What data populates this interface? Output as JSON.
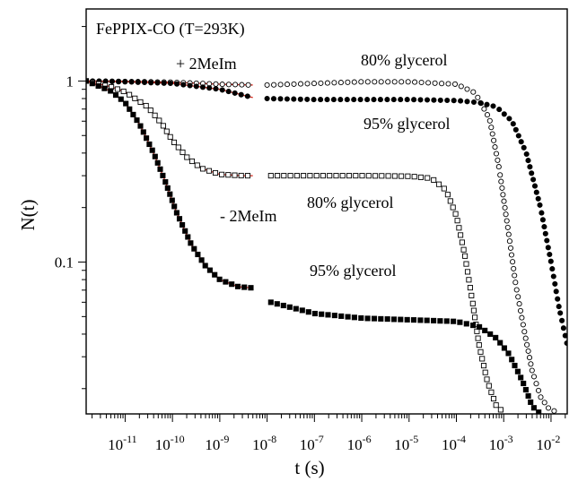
{
  "chart_data": {
    "type": "scatter",
    "title": "FePPIX-CO (T=293K)",
    "xlabel": "t (s)",
    "ylabel": "N(t)",
    "x_scale": "log",
    "y_scale": "log",
    "xlim": [
      1.5e-12,
      0.022
    ],
    "ylim": [
      0.0145,
      2.5
    ],
    "x_ticks": [
      {
        "value": 1e-11,
        "label": "10",
        "exp": "-11"
      },
      {
        "value": 1e-10,
        "label": "10",
        "exp": "-10"
      },
      {
        "value": 1e-09,
        "label": "10",
        "exp": "-9"
      },
      {
        "value": 1e-08,
        "label": "10",
        "exp": "-8"
      },
      {
        "value": 1e-07,
        "label": "10",
        "exp": "-7"
      },
      {
        "value": 1e-06,
        "label": "10",
        "exp": "-6"
      },
      {
        "value": 1e-05,
        "label": "10",
        "exp": "-5"
      },
      {
        "value": 0.0001,
        "label": "10",
        "exp": "-4"
      },
      {
        "value": 0.001,
        "label": "10",
        "exp": "-3"
      },
      {
        "value": 0.01,
        "label": "10",
        "exp": "-2"
      }
    ],
    "y_ticks": [
      {
        "value": 1,
        "label": "1"
      },
      {
        "value": 0.1,
        "label": "0.1"
      }
    ],
    "annotations": {
      "plus_2meim": "+ 2MeIm",
      "minus_2meim": "- 2MeIm",
      "top_80": "80% glycerol",
      "top_95": "95% glycerol",
      "mid_80": "80% glycerol",
      "bottom_95": "95% glycerol"
    },
    "series": [
      {
        "marker": "open-circle",
        "color": "#000000",
        "segments": [
          {
            "x_range": [
              1.5e-12,
              5e-09
            ],
            "points": [
              [
                1.5e-12,
                1.0
              ],
              [
                1e-11,
                0.995
              ],
              [
                1e-10,
                0.985
              ],
              [
                1e-09,
                0.96
              ],
              [
                5e-09,
                0.95
              ]
            ]
          },
          {
            "x_range": [
              1e-08,
              0.012
            ],
            "points": [
              [
                1e-08,
                0.95
              ],
              [
                1e-07,
                0.97
              ],
              [
                1e-06,
                0.99
              ],
              [
                1e-05,
                0.99
              ],
              [
                0.0001,
                0.96
              ],
              [
                0.00025,
                0.86
              ],
              [
                0.0005,
                0.62
              ],
              [
                0.0008,
                0.33
              ],
              [
                0.0012,
                0.16
              ],
              [
                0.0018,
                0.075
              ],
              [
                0.0028,
                0.04
              ],
              [
                0.004,
                0.025
              ],
              [
                0.006,
                0.018
              ],
              [
                0.009,
                0.0155
              ],
              [
                0.012,
                0.015
              ]
            ]
          }
        ]
      },
      {
        "marker": "filled-circle",
        "color": "#000000",
        "segments": [
          {
            "x_range": [
              1.5e-12,
              5e-09
            ],
            "points": [
              [
                1.5e-12,
                1.0
              ],
              [
                1e-11,
                0.99
              ],
              [
                1e-10,
                0.97
              ],
              [
                1e-09,
                0.9
              ],
              [
                5e-09,
                0.81
              ]
            ]
          },
          {
            "x_range": [
              1e-08,
              0.022
            ],
            "points": [
              [
                1e-08,
                0.8
              ],
              [
                1e-07,
                0.79
              ],
              [
                1e-06,
                0.79
              ],
              [
                1e-05,
                0.79
              ],
              [
                0.0001,
                0.78
              ],
              [
                0.0003,
                0.76
              ],
              [
                0.0007,
                0.72
              ],
              [
                0.0015,
                0.6
              ],
              [
                0.003,
                0.4
              ],
              [
                0.006,
                0.2
              ],
              [
                0.01,
                0.1
              ],
              [
                0.015,
                0.055
              ],
              [
                0.022,
                0.035
              ]
            ]
          }
        ]
      },
      {
        "marker": "open-square",
        "color": "#000000",
        "segments": [
          {
            "x_range": [
              1.5e-12,
              5e-09
            ],
            "points": [
              [
                1.5e-12,
                1.0
              ],
              [
                5e-12,
                0.93
              ],
              [
                1e-11,
                0.87
              ],
              [
                3e-11,
                0.72
              ],
              [
                6e-11,
                0.58
              ],
              [
                1e-10,
                0.47
              ],
              [
                2e-10,
                0.38
              ],
              [
                4e-10,
                0.33
              ],
              [
                1e-09,
                0.305
              ],
              [
                3e-09,
                0.3
              ],
              [
                5e-09,
                0.3
              ]
            ]
          },
          {
            "x_range": [
              1.2e-08,
              0.0011
            ],
            "points": [
              [
                1.2e-08,
                0.3
              ],
              [
                1e-07,
                0.3
              ],
              [
                1e-06,
                0.3
              ],
              [
                1e-05,
                0.298
              ],
              [
                3e-05,
                0.29
              ],
              [
                6e-05,
                0.25
              ],
              [
                0.0001,
                0.18
              ],
              [
                0.00015,
                0.11
              ],
              [
                0.00022,
                0.06
              ],
              [
                0.0003,
                0.035
              ],
              [
                0.00045,
                0.022
              ],
              [
                0.0007,
                0.016
              ],
              [
                0.0011,
                0.0145
              ]
            ]
          }
        ]
      },
      {
        "marker": "filled-square",
        "color": "#000000",
        "segments": [
          {
            "x_range": [
              1.5e-12,
              5e-09
            ],
            "points": [
              [
                1.5e-12,
                1.0
              ],
              [
                5e-12,
                0.88
              ],
              [
                1e-11,
                0.76
              ],
              [
                2e-11,
                0.58
              ],
              [
                4e-11,
                0.4
              ],
              [
                7e-11,
                0.28
              ],
              [
                1.2e-10,
                0.19
              ],
              [
                2.5e-10,
                0.125
              ],
              [
                5e-10,
                0.095
              ],
              [
                1e-09,
                0.08
              ],
              [
                2.5e-09,
                0.073
              ],
              [
                5e-09,
                0.072
              ]
            ]
          },
          {
            "x_range": [
              1.2e-08,
              0.006
            ],
            "points": [
              [
                1.2e-08,
                0.06
              ],
              [
                1e-07,
                0.052
              ],
              [
                1e-06,
                0.049
              ],
              [
                1e-05,
                0.048
              ],
              [
                0.0001,
                0.047
              ],
              [
                0.0003,
                0.044
              ],
              [
                0.0007,
                0.038
              ],
              [
                0.0013,
                0.031
              ],
              [
                0.0025,
                0.022
              ],
              [
                0.004,
                0.016
              ],
              [
                0.006,
                0.0145
              ]
            ]
          }
        ]
      }
    ],
    "fits": [
      {
        "color": "#d62b1f",
        "points": [
          [
            1.5e-12,
            1.0
          ],
          [
            1e-11,
            0.995
          ],
          [
            1e-10,
            0.985
          ],
          [
            1e-09,
            0.96
          ],
          [
            5e-09,
            0.95
          ]
        ]
      },
      {
        "color": "#d62b1f",
        "points": [
          [
            1.5e-12,
            1.0
          ],
          [
            1e-11,
            0.99
          ],
          [
            1e-10,
            0.97
          ],
          [
            1e-09,
            0.9
          ],
          [
            5e-09,
            0.81
          ]
        ]
      },
      {
        "color": "#d62b1f",
        "points": [
          [
            1.5e-12,
            1.0
          ],
          [
            5e-12,
            0.93
          ],
          [
            1e-11,
            0.87
          ],
          [
            3e-11,
            0.72
          ],
          [
            6e-11,
            0.58
          ],
          [
            1e-10,
            0.47
          ],
          [
            2e-10,
            0.38
          ],
          [
            4e-10,
            0.33
          ],
          [
            1e-09,
            0.305
          ],
          [
            3e-09,
            0.3
          ],
          [
            5e-09,
            0.3
          ]
        ]
      },
      {
        "color": "#d62b1f",
        "points": [
          [
            1.5e-12,
            1.0
          ],
          [
            5e-12,
            0.88
          ],
          [
            1e-11,
            0.76
          ],
          [
            2e-11,
            0.58
          ],
          [
            4e-11,
            0.4
          ],
          [
            7e-11,
            0.28
          ],
          [
            1.2e-10,
            0.19
          ],
          [
            2.5e-10,
            0.125
          ],
          [
            5e-10,
            0.095
          ],
          [
            1e-09,
            0.08
          ],
          [
            2.5e-09,
            0.073
          ],
          [
            5e-09,
            0.072
          ]
        ]
      }
    ],
    "grid": false,
    "legend": "none"
  }
}
